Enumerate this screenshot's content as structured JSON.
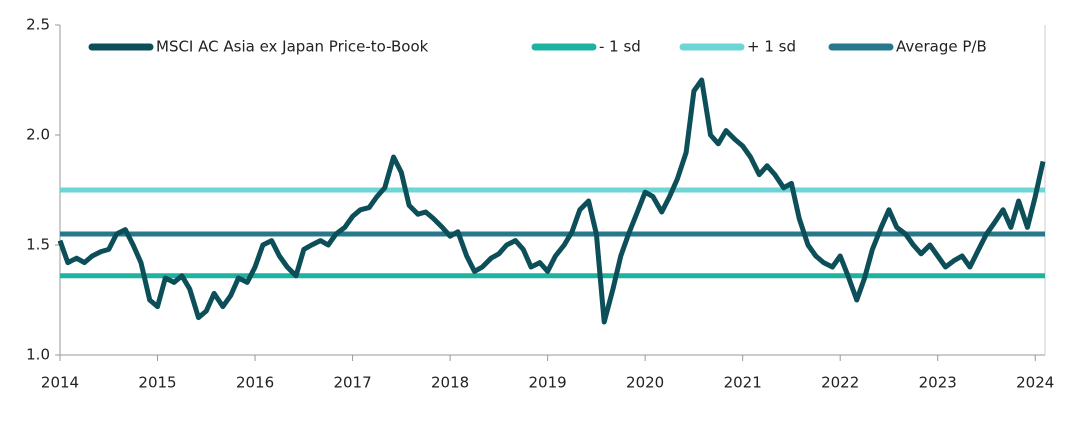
{
  "chart_data": {
    "type": "line",
    "xlim": [
      2014,
      2024.1
    ],
    "xticks": [
      2014,
      2015,
      2016,
      2017,
      2018,
      2019,
      2020,
      2021,
      2022,
      2023,
      2024
    ],
    "ylim": [
      1,
      2.5
    ],
    "yticks": [
      {
        "value": 1,
        "label": "1.0"
      },
      1.5,
      {
        "value": 2,
        "label": "2.0"
      },
      2.5
    ],
    "legend": "top",
    "series": [
      {
        "name": "MSCI AC Asia ex Japan Price-to-Book",
        "color": "#0d4f59",
        "x": [
          2014.0,
          2014.08,
          2014.17,
          2014.25,
          2014.33,
          2014.42,
          2014.5,
          2014.58,
          2014.67,
          2014.75,
          2014.83,
          2014.92,
          2015.0,
          2015.08,
          2015.17,
          2015.25,
          2015.33,
          2015.42,
          2015.5,
          2015.58,
          2015.67,
          2015.75,
          2015.83,
          2015.92,
          2016.0,
          2016.08,
          2016.17,
          2016.25,
          2016.33,
          2016.42,
          2016.5,
          2016.58,
          2016.67,
          2016.75,
          2016.83,
          2016.92,
          2017.0,
          2017.08,
          2017.17,
          2017.25,
          2017.33,
          2017.42,
          2017.5,
          2017.58,
          2017.67,
          2017.75,
          2017.83,
          2017.92,
          2018.0,
          2018.08,
          2018.17,
          2018.25,
          2018.33,
          2018.42,
          2018.5,
          2018.58,
          2018.67,
          2018.75,
          2018.83,
          2018.92,
          2019.0,
          2019.08,
          2019.17,
          2019.25,
          2019.33,
          2019.42,
          2019.5,
          2019.58,
          2019.67,
          2019.75,
          2019.83,
          2019.92,
          2020.0,
          2020.08,
          2020.17,
          2020.25,
          2020.33,
          2020.42,
          2020.5,
          2020.58,
          2020.67,
          2020.75,
          2020.83,
          2020.92,
          2021.0,
          2021.08,
          2021.17,
          2021.25,
          2021.33,
          2021.42,
          2021.5,
          2021.58,
          2021.67,
          2021.75,
          2021.83,
          2021.92,
          2022.0,
          2022.08,
          2022.17,
          2022.25,
          2022.33,
          2022.42,
          2022.5,
          2022.58,
          2022.67,
          2022.75,
          2022.83,
          2022.92,
          2023.0,
          2023.08,
          2023.17,
          2023.25,
          2023.33,
          2023.42,
          2023.5,
          2023.58,
          2023.67,
          2023.75,
          2023.83,
          2023.92,
          2024.0,
          2024.08
        ],
        "values": [
          1.52,
          1.42,
          1.44,
          1.42,
          1.45,
          1.47,
          1.48,
          1.55,
          1.57,
          1.5,
          1.42,
          1.25,
          1.22,
          1.35,
          1.33,
          1.36,
          1.3,
          1.17,
          1.2,
          1.28,
          1.22,
          1.27,
          1.35,
          1.33,
          1.4,
          1.5,
          1.52,
          1.45,
          1.4,
          1.36,
          1.48,
          1.5,
          1.52,
          1.5,
          1.55,
          1.58,
          1.63,
          1.66,
          1.67,
          1.72,
          1.76,
          1.9,
          1.83,
          1.68,
          1.64,
          1.65,
          1.62,
          1.58,
          1.54,
          1.56,
          1.45,
          1.38,
          1.4,
          1.44,
          1.46,
          1.5,
          1.52,
          1.48,
          1.4,
          1.42,
          1.38,
          1.45,
          1.5,
          1.56,
          1.66,
          1.7,
          1.55,
          1.15,
          1.3,
          1.45,
          1.55,
          1.65,
          1.74,
          1.72,
          1.65,
          1.72,
          1.8,
          1.92,
          2.2,
          2.25,
          2.0,
          1.96,
          2.02,
          1.98,
          1.95,
          1.9,
          1.82,
          1.86,
          1.82,
          1.76,
          1.78,
          1.62,
          1.5,
          1.45,
          1.42,
          1.4,
          1.45,
          1.36,
          1.25,
          1.35,
          1.48,
          1.58,
          1.66,
          1.58,
          1.55,
          1.5,
          1.46,
          1.5,
          1.45,
          1.4,
          1.43,
          1.45,
          1.4,
          1.48,
          1.55,
          1.6,
          1.66,
          1.58,
          1.7,
          1.58,
          1.72,
          1.88
        ]
      },
      {
        "name": "- 1 sd",
        "color": "#1db3a0",
        "x": [
          2014,
          2024.1
        ],
        "values": [
          1.36,
          1.36
        ]
      },
      {
        "name": "+ 1 sd",
        "color": "#6dd5d5",
        "x": [
          2014,
          2024.1
        ],
        "values": [
          1.75,
          1.75
        ]
      },
      {
        "name": "Average P/B",
        "color": "#27788a",
        "x": [
          2014,
          2024.1
        ],
        "values": [
          1.55,
          1.55
        ]
      }
    ]
  }
}
